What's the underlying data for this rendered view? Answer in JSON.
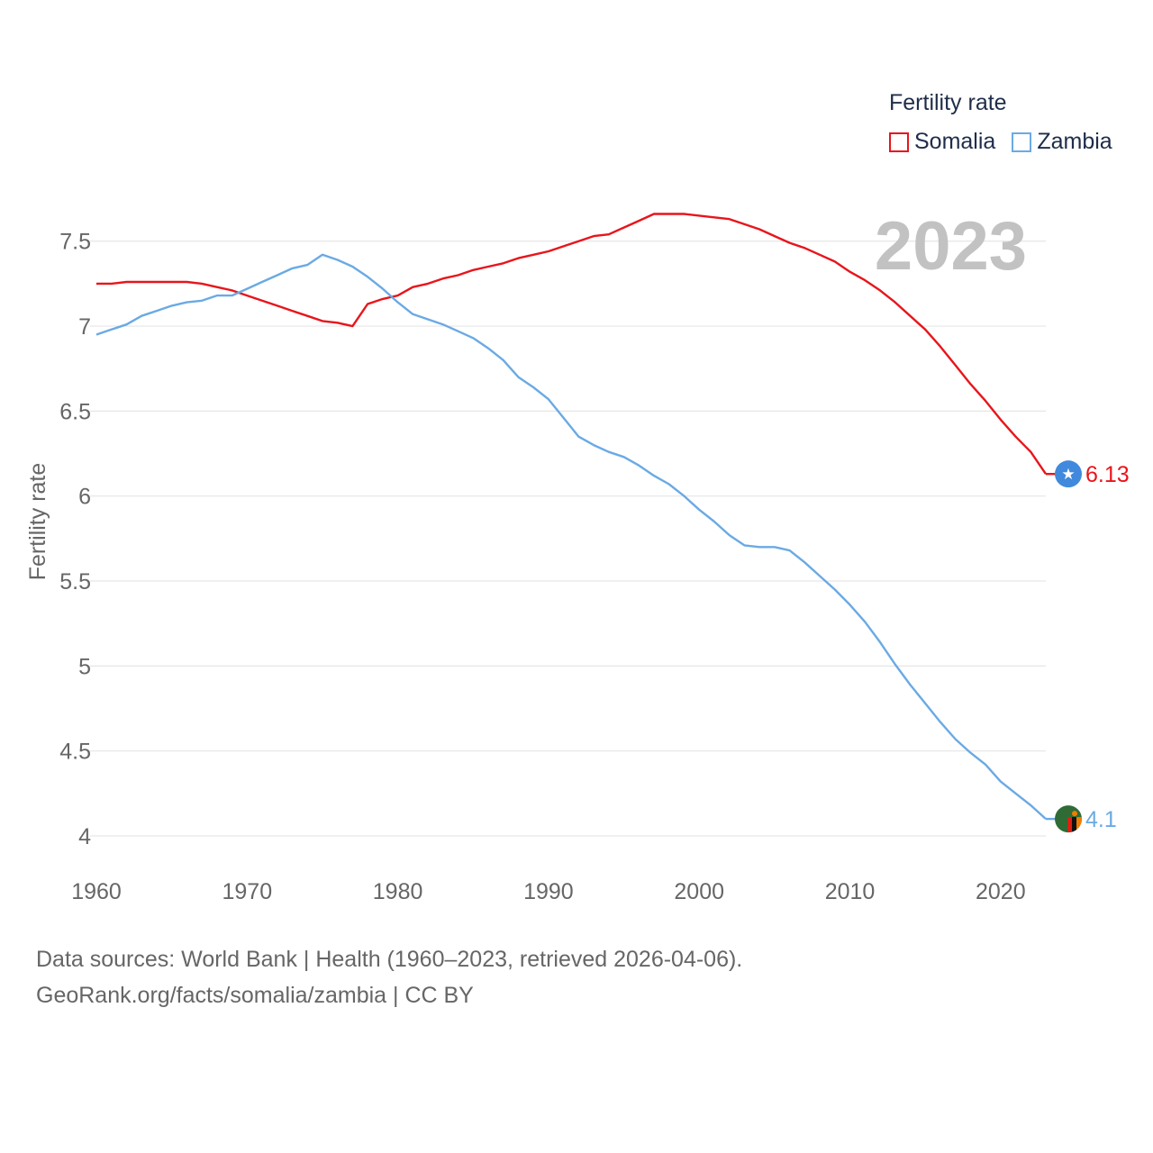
{
  "chart_data": {
    "type": "line",
    "title": "",
    "year_label": "2023",
    "xlabel": "",
    "ylabel": "Fertility rate",
    "xlim": [
      1960,
      2023
    ],
    "ylim": [
      4,
      7.7
    ],
    "yticks": [
      4,
      4.5,
      5,
      5.5,
      6,
      6.5,
      7,
      7.5
    ],
    "ytick_labels": [
      "4",
      "4.5",
      "5",
      "5.5",
      "6",
      "6.5",
      "7",
      "7.5"
    ],
    "xticks": [
      1960,
      1970,
      1980,
      1990,
      2000,
      2010,
      2020
    ],
    "xtick_labels": [
      "1960",
      "1970",
      "1980",
      "1990",
      "2000",
      "2010",
      "2020"
    ],
    "legend": {
      "title": "Fertility rate",
      "placement": "top-right"
    },
    "series": [
      {
        "name": "Somalia",
        "color": "#e8151b",
        "end_label": "6.13",
        "icon": "somalia-flag-icon",
        "points": [
          [
            1960,
            7.25
          ],
          [
            1961,
            7.25
          ],
          [
            1962,
            7.26
          ],
          [
            1963,
            7.26
          ],
          [
            1964,
            7.26
          ],
          [
            1965,
            7.26
          ],
          [
            1966,
            7.26
          ],
          [
            1967,
            7.25
          ],
          [
            1968,
            7.23
          ],
          [
            1969,
            7.21
          ],
          [
            1970,
            7.18
          ],
          [
            1971,
            7.15
          ],
          [
            1972,
            7.12
          ],
          [
            1973,
            7.09
          ],
          [
            1974,
            7.06
          ],
          [
            1975,
            7.03
          ],
          [
            1976,
            7.02
          ],
          [
            1977,
            7.0
          ],
          [
            1978,
            7.13
          ],
          [
            1979,
            7.16
          ],
          [
            1980,
            7.18
          ],
          [
            1981,
            7.23
          ],
          [
            1982,
            7.25
          ],
          [
            1983,
            7.28
          ],
          [
            1984,
            7.3
          ],
          [
            1985,
            7.33
          ],
          [
            1986,
            7.35
          ],
          [
            1987,
            7.37
          ],
          [
            1988,
            7.4
          ],
          [
            1989,
            7.42
          ],
          [
            1990,
            7.44
          ],
          [
            1991,
            7.47
          ],
          [
            1992,
            7.5
          ],
          [
            1993,
            7.53
          ],
          [
            1994,
            7.54
          ],
          [
            1995,
            7.58
          ],
          [
            1996,
            7.62
          ],
          [
            1997,
            7.66
          ],
          [
            1998,
            7.66
          ],
          [
            1999,
            7.66
          ],
          [
            2000,
            7.65
          ],
          [
            2001,
            7.64
          ],
          [
            2002,
            7.63
          ],
          [
            2003,
            7.6
          ],
          [
            2004,
            7.57
          ],
          [
            2005,
            7.53
          ],
          [
            2006,
            7.49
          ],
          [
            2007,
            7.46
          ],
          [
            2008,
            7.42
          ],
          [
            2009,
            7.38
          ],
          [
            2010,
            7.32
          ],
          [
            2011,
            7.27
          ],
          [
            2012,
            7.21
          ],
          [
            2013,
            7.14
          ],
          [
            2014,
            7.06
          ],
          [
            2015,
            6.98
          ],
          [
            2016,
            6.88
          ],
          [
            2017,
            6.77
          ],
          [
            2018,
            6.66
          ],
          [
            2019,
            6.56
          ],
          [
            2020,
            6.45
          ],
          [
            2021,
            6.35
          ],
          [
            2022,
            6.26
          ],
          [
            2023,
            6.13
          ]
        ]
      },
      {
        "name": "Zambia",
        "color": "#6aaae4",
        "end_label": "4.1",
        "icon": "zambia-flag-icon",
        "points": [
          [
            1960,
            6.95
          ],
          [
            1961,
            6.98
          ],
          [
            1962,
            7.01
          ],
          [
            1963,
            7.06
          ],
          [
            1964,
            7.09
          ],
          [
            1965,
            7.12
          ],
          [
            1966,
            7.14
          ],
          [
            1967,
            7.15
          ],
          [
            1968,
            7.18
          ],
          [
            1969,
            7.18
          ],
          [
            1970,
            7.22
          ],
          [
            1971,
            7.26
          ],
          [
            1972,
            7.3
          ],
          [
            1973,
            7.34
          ],
          [
            1974,
            7.36
          ],
          [
            1975,
            7.42
          ],
          [
            1976,
            7.39
          ],
          [
            1977,
            7.35
          ],
          [
            1978,
            7.29
          ],
          [
            1979,
            7.22
          ],
          [
            1980,
            7.14
          ],
          [
            1981,
            7.07
          ],
          [
            1982,
            7.04
          ],
          [
            1983,
            7.01
          ],
          [
            1984,
            6.97
          ],
          [
            1985,
            6.93
          ],
          [
            1986,
            6.87
          ],
          [
            1987,
            6.8
          ],
          [
            1988,
            6.7
          ],
          [
            1989,
            6.64
          ],
          [
            1990,
            6.57
          ],
          [
            1991,
            6.46
          ],
          [
            1992,
            6.35
          ],
          [
            1993,
            6.3
          ],
          [
            1994,
            6.26
          ],
          [
            1995,
            6.23
          ],
          [
            1996,
            6.18
          ],
          [
            1997,
            6.12
          ],
          [
            1998,
            6.07
          ],
          [
            1999,
            6.0
          ],
          [
            2000,
            5.92
          ],
          [
            2001,
            5.85
          ],
          [
            2002,
            5.77
          ],
          [
            2003,
            5.71
          ],
          [
            2004,
            5.7
          ],
          [
            2005,
            5.7
          ],
          [
            2006,
            5.68
          ],
          [
            2007,
            5.61
          ],
          [
            2008,
            5.53
          ],
          [
            2009,
            5.45
          ],
          [
            2010,
            5.36
          ],
          [
            2011,
            5.26
          ],
          [
            2012,
            5.14
          ],
          [
            2013,
            5.01
          ],
          [
            2014,
            4.89
          ],
          [
            2015,
            4.78
          ],
          [
            2016,
            4.67
          ],
          [
            2017,
            4.57
          ],
          [
            2018,
            4.49
          ],
          [
            2019,
            4.42
          ],
          [
            2020,
            4.32
          ],
          [
            2021,
            4.25
          ],
          [
            2022,
            4.18
          ],
          [
            2023,
            4.1
          ]
        ]
      }
    ]
  },
  "footer": {
    "line1": "Data sources: World Bank | Health (1960–2023, retrieved 2026-04-06).",
    "line2": "GeoRank.org/facts/somalia/zambia | CC BY"
  }
}
